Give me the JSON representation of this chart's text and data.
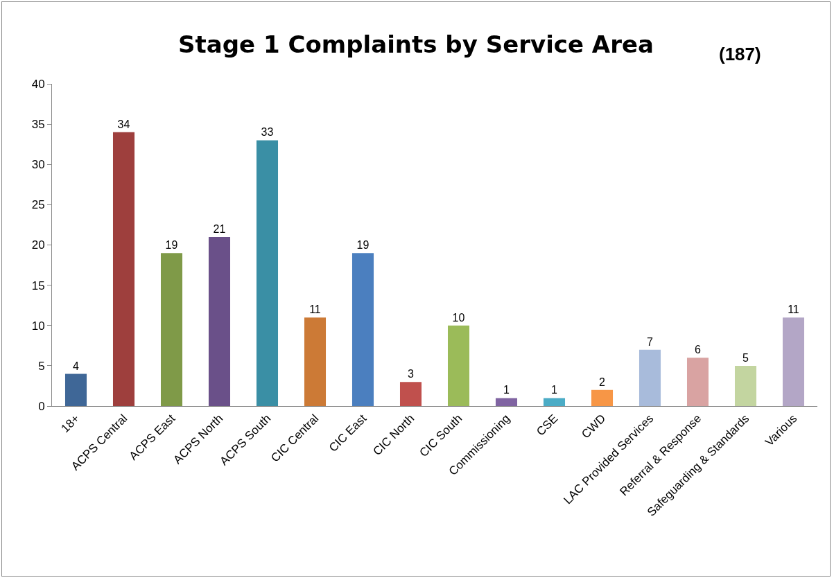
{
  "chart_data": {
    "type": "bar",
    "title": "Stage 1 Complaints by Service Area",
    "annotations": [
      "(187)"
    ],
    "categories": [
      "18+",
      "ACPS Central",
      "ACPS East",
      "ACPS North",
      "ACPS South",
      "CIC Central",
      "CIC East",
      "CIC North",
      "CIC South",
      "Commissioning",
      "CSE",
      "CWD",
      "LAC Provided Services",
      "Referral & Response",
      "Safeguarding & Standards",
      "Various"
    ],
    "values": [
      4,
      34,
      19,
      21,
      33,
      11,
      19,
      3,
      10,
      1,
      1,
      2,
      7,
      6,
      5,
      11
    ],
    "colors": [
      "#3f6797",
      "#9e3f3d",
      "#7f9a48",
      "#6a5089",
      "#3a8fa5",
      "#cc7a36",
      "#4b7fbf",
      "#c0504d",
      "#9bbb59",
      "#8064a2",
      "#4bacc6",
      "#f79646",
      "#a8bbdb",
      "#d9a3a2",
      "#c3d5a0",
      "#b3a6c6"
    ],
    "ylim": [
      0,
      40
    ],
    "yticks": [
      0,
      5,
      10,
      15,
      20,
      25,
      30,
      35,
      40
    ],
    "grid": false,
    "data_labels": true
  }
}
